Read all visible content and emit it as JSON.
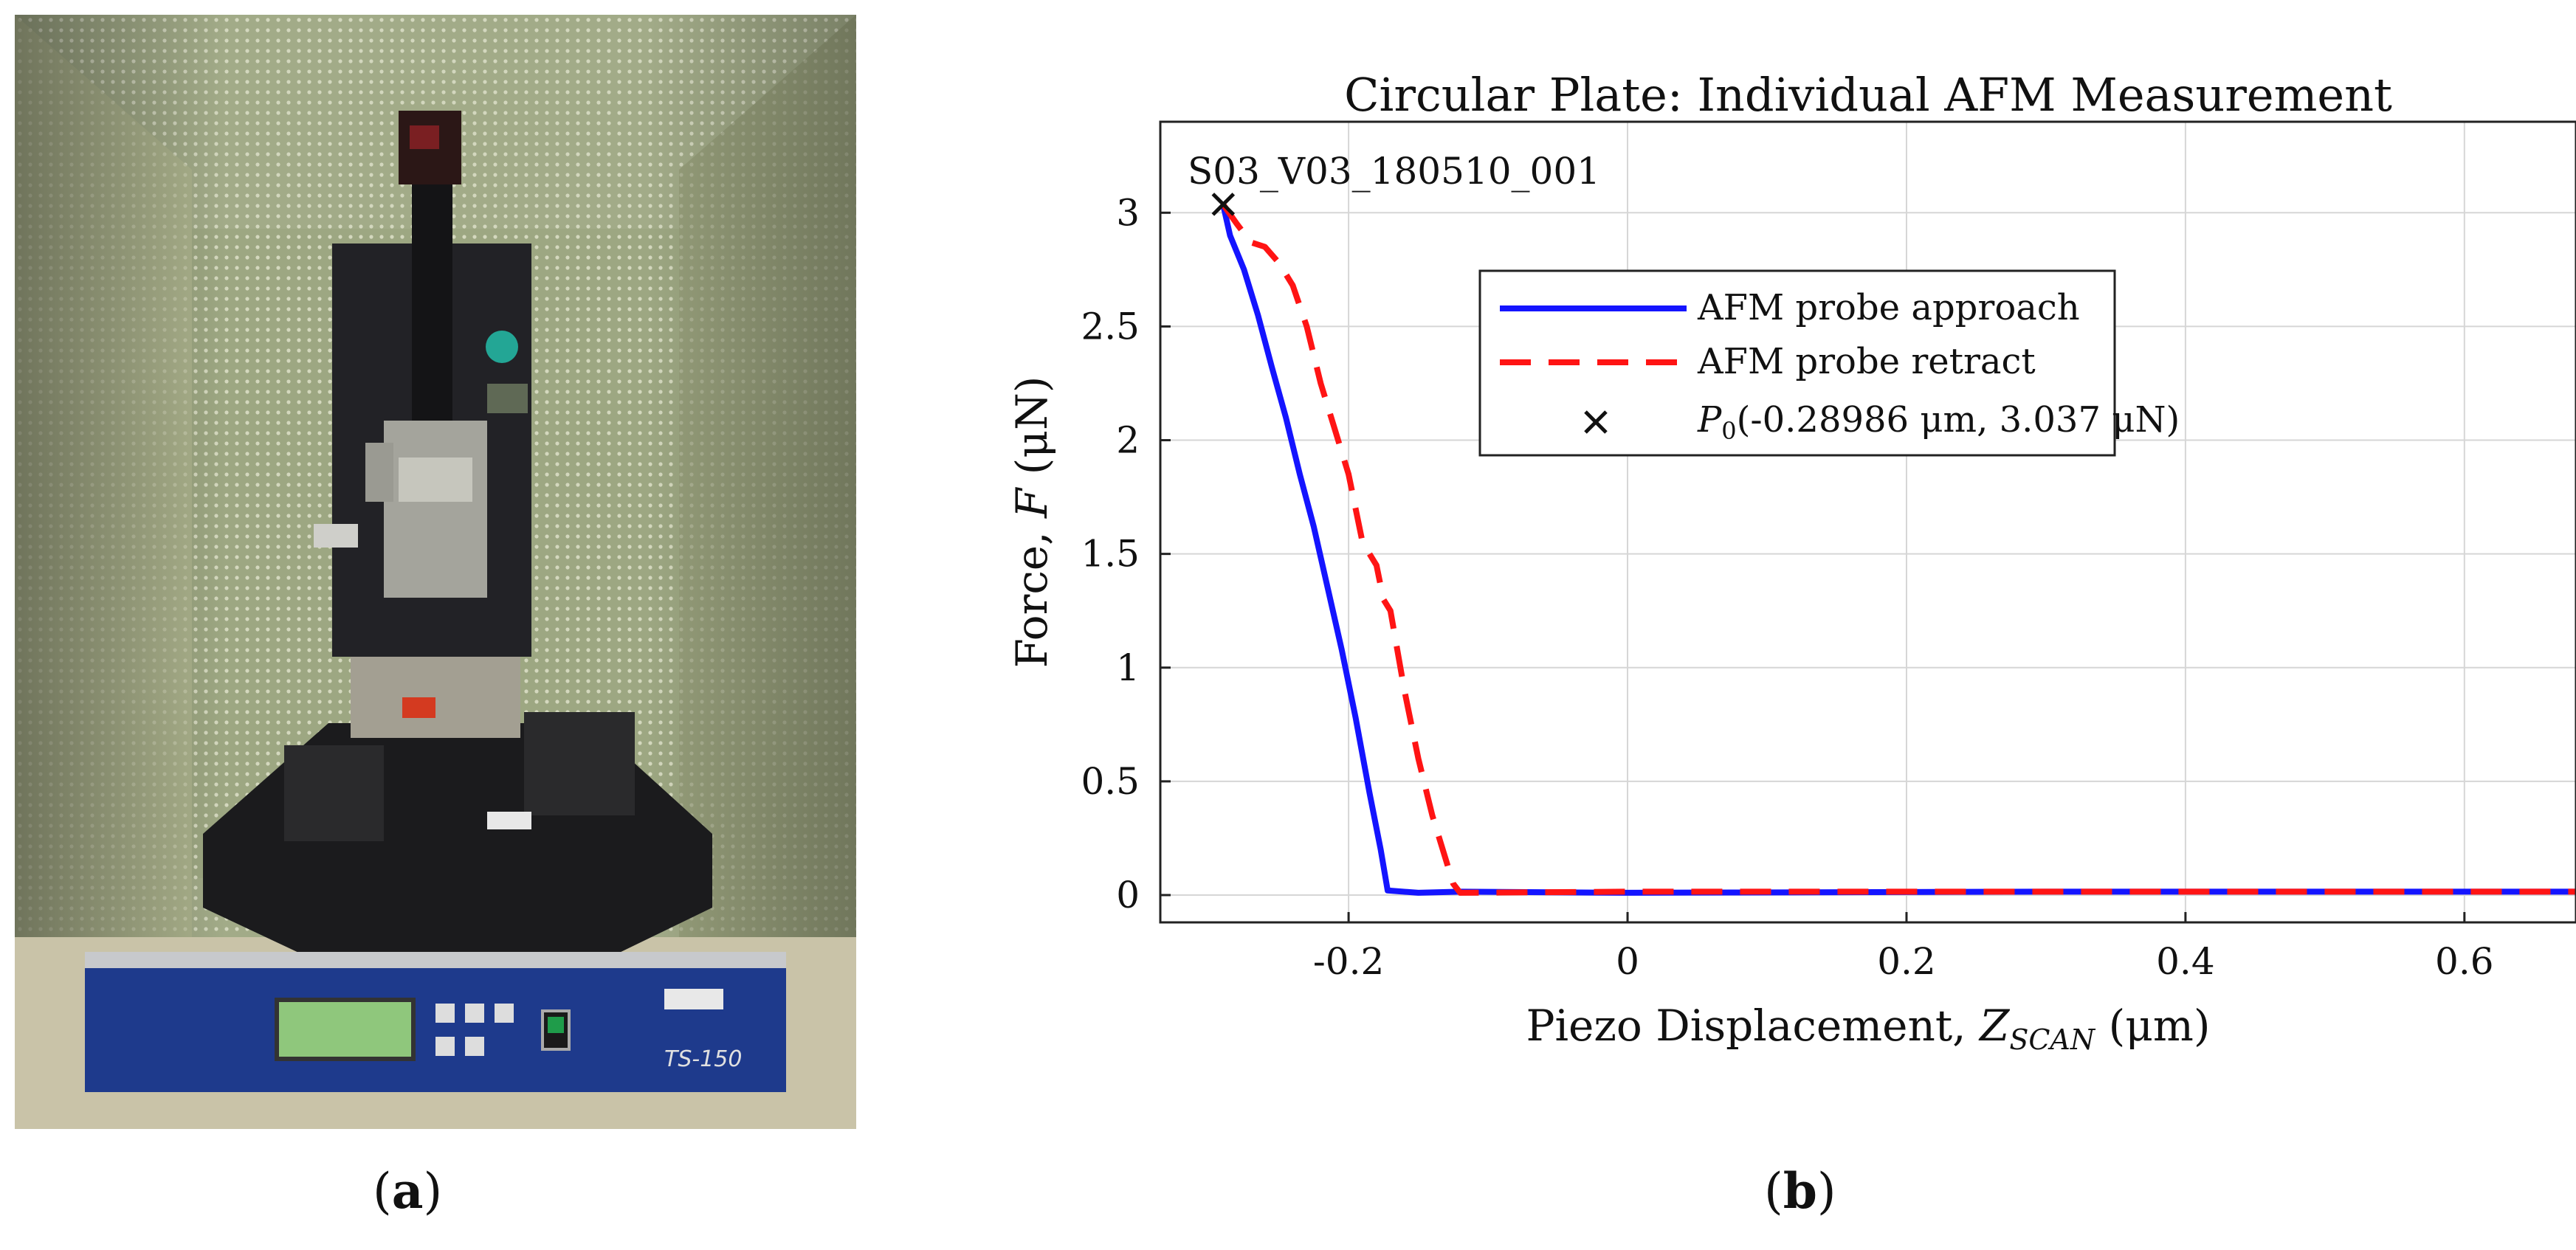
{
  "panels": {
    "a": {
      "caption_label": "a"
    },
    "b": {
      "caption_label": "b"
    }
  },
  "photo": {
    "instrument_label": "TS-150"
  },
  "chart_data": {
    "type": "line",
    "title": "Circular Plate: Individual AFM Measurement",
    "xlabel_prefix": "Piezo Displacement, ",
    "xlabel_var": "Z",
    "xlabel_sub": "SCAN",
    "xlabel_unit": " (μm)",
    "ylabel_prefix": "Force, ",
    "ylabel_var": "F",
    "ylabel_unit": " (μN)",
    "xlim": [
      -0.335,
      0.68
    ],
    "ylim": [
      -0.12,
      3.4
    ],
    "xticks": [
      -0.2,
      0,
      0.2,
      0.4,
      0.6
    ],
    "xtick_labels": [
      "-0.2",
      "0",
      "0.2",
      "0.4",
      "0.6"
    ],
    "yticks": [
      0,
      0.5,
      1,
      1.5,
      2,
      2.5,
      3
    ],
    "ytick_labels": [
      "0",
      "0.5",
      "1",
      "1.5",
      "2",
      "2.5",
      "3"
    ],
    "grid": true,
    "legend_position": "top-center",
    "series": [
      {
        "name": "AFM probe approach",
        "color": "#1414ff",
        "style": "solid",
        "x": [
          -0.29,
          -0.285,
          -0.275,
          -0.265,
          -0.255,
          -0.245,
          -0.235,
          -0.225,
          -0.215,
          -0.205,
          -0.195,
          -0.185,
          -0.177,
          -0.172,
          -0.15,
          -0.12,
          0.0,
          0.3,
          0.68
        ],
        "y": [
          3.037,
          2.9,
          2.75,
          2.55,
          2.32,
          2.1,
          1.85,
          1.62,
          1.35,
          1.08,
          0.78,
          0.45,
          0.2,
          0.02,
          0.01,
          0.015,
          0.01,
          0.015,
          0.015
        ]
      },
      {
        "name": "AFM probe retract",
        "color": "#ff1414",
        "style": "dashed",
        "x": [
          -0.29,
          -0.28,
          -0.27,
          -0.26,
          -0.25,
          -0.24,
          -0.23,
          -0.22,
          -0.21,
          -0.2,
          -0.19,
          -0.18,
          -0.175,
          -0.17,
          -0.16,
          -0.15,
          -0.14,
          -0.13,
          -0.125,
          -0.12,
          0.0,
          0.3,
          0.68
        ],
        "y": [
          3.037,
          2.95,
          2.87,
          2.85,
          2.78,
          2.68,
          2.5,
          2.25,
          2.05,
          1.85,
          1.55,
          1.45,
          1.3,
          1.25,
          0.9,
          0.6,
          0.35,
          0.15,
          0.05,
          0.01,
          0.015,
          0.015,
          0.015
        ]
      }
    ],
    "marker": {
      "label_prefix": "P",
      "label_sub": "0",
      "label_coords": "(-0.28986 μm, 3.037 μN)",
      "x": -0.28986,
      "y": 3.037
    },
    "annotation": {
      "text": "S03_V03_180510_001",
      "x": -0.29,
      "y": 3.037
    }
  }
}
